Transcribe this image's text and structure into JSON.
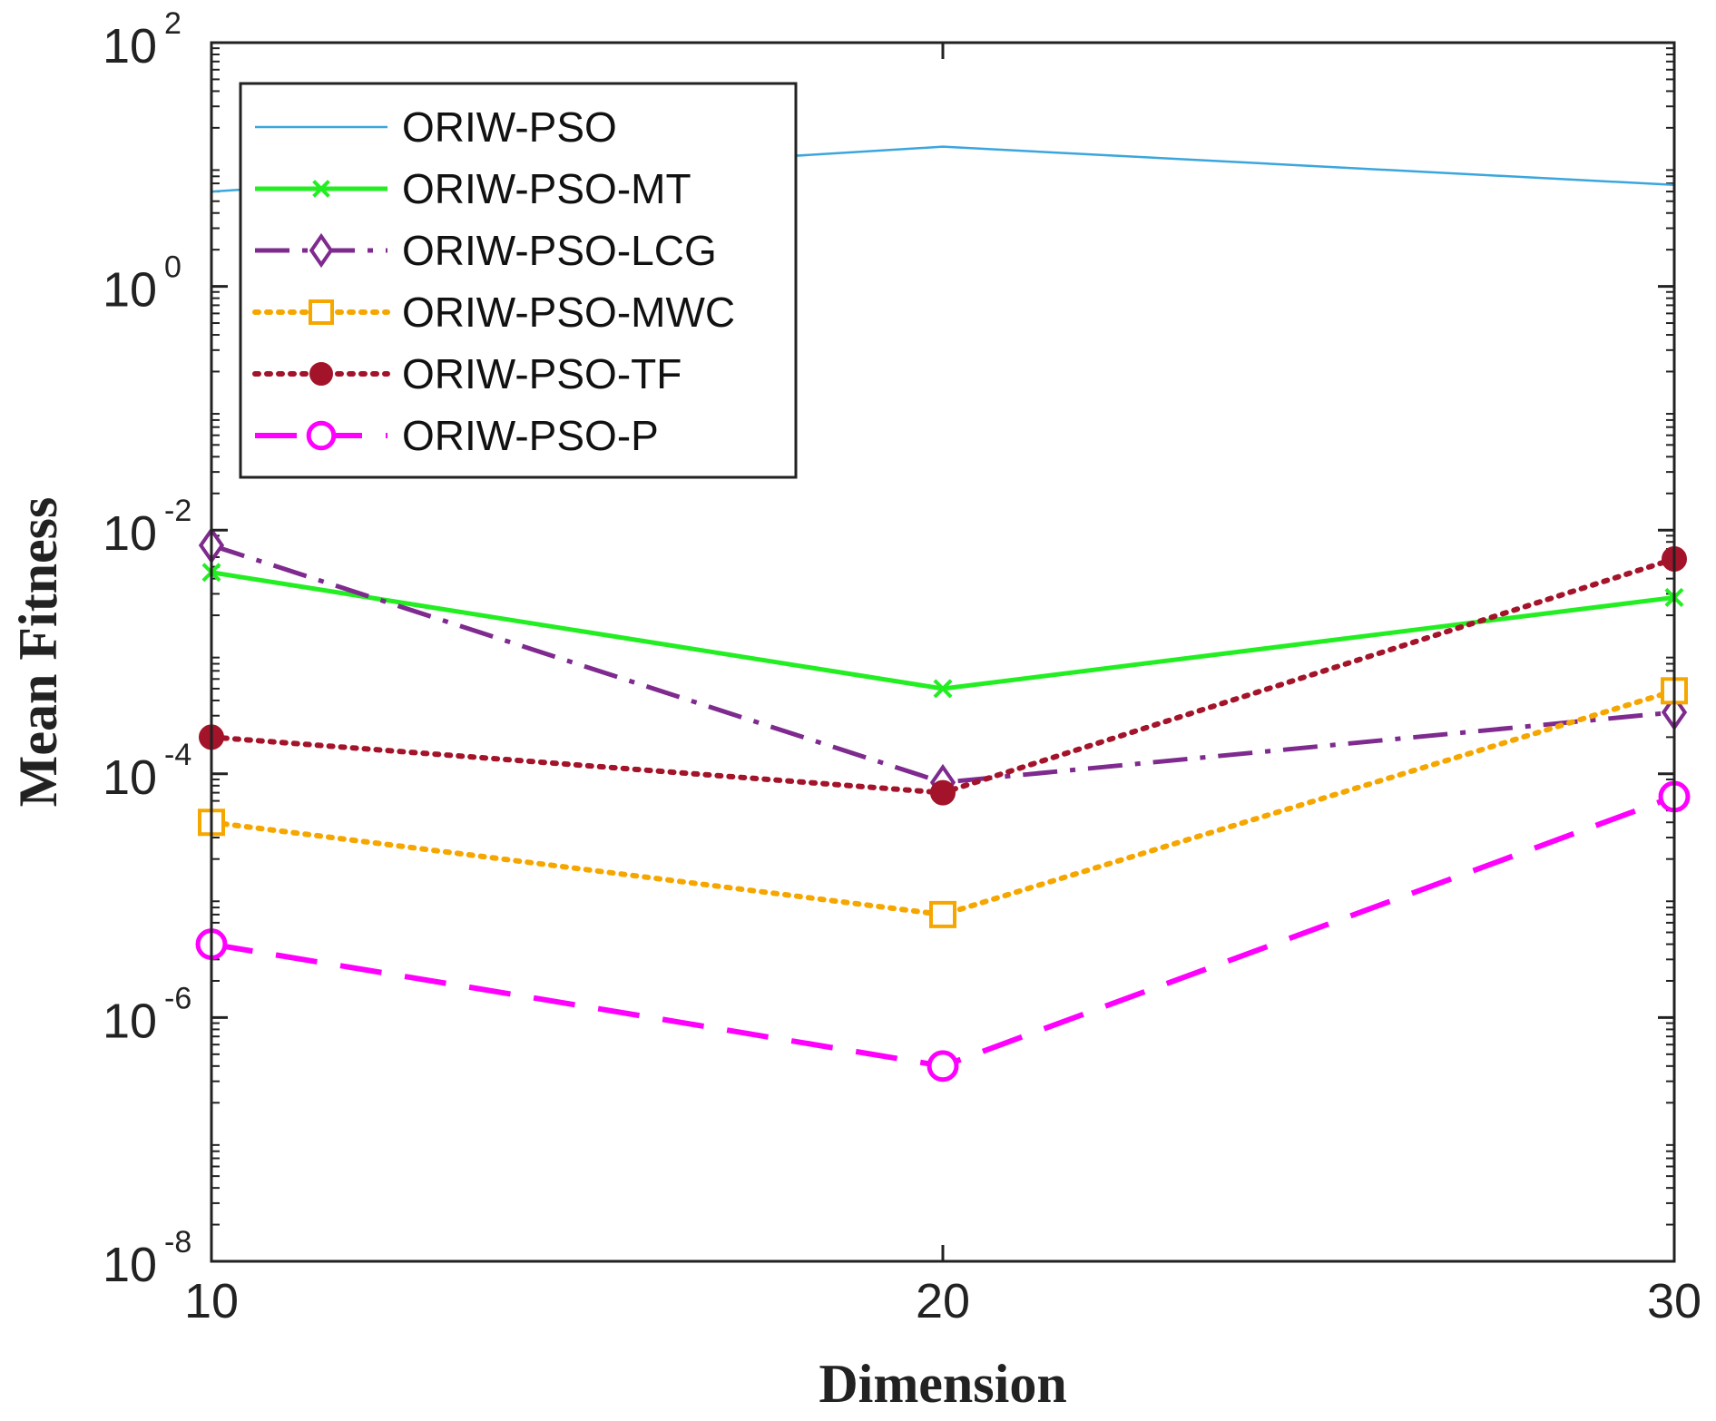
{
  "chart_data": {
    "type": "line",
    "title": "",
    "xlabel": "Dimension",
    "ylabel": "Mean Fitness",
    "yscale": "log",
    "x": [
      10,
      20,
      30
    ],
    "xlim": [
      10,
      30
    ],
    "ylim": [
      1e-08,
      100
    ],
    "xticks": [
      {
        "value": 10,
        "label": "10"
      },
      {
        "value": 20,
        "label": "20"
      },
      {
        "value": 30,
        "label": "30"
      }
    ],
    "yticks": [
      {
        "exp": -8,
        "base": "10",
        "sup": "-8"
      },
      {
        "exp": -6,
        "base": "10",
        "sup": "-6"
      },
      {
        "exp": -4,
        "base": "10",
        "sup": "-4"
      },
      {
        "exp": -2,
        "base": "10",
        "sup": "-2"
      },
      {
        "exp": 0,
        "base": "10",
        "sup": "0"
      },
      {
        "exp": 2,
        "base": "10",
        "sup": "2"
      }
    ],
    "legend_position": "top-left",
    "series": [
      {
        "name": "ORIW-PSO",
        "values": [
          6,
          14,
          6.8
        ],
        "color": "#3aa6dd",
        "dash": "solid",
        "marker": "none"
      },
      {
        "name": "ORIW-PSO-MT",
        "values": [
          0.0045,
          0.0005,
          0.0028
        ],
        "color": "#22ee22",
        "dash": "solid",
        "marker": "x"
      },
      {
        "name": "ORIW-PSO-LCG",
        "values": [
          0.0075,
          8.5e-05,
          0.00032
        ],
        "color": "#7e2a8e",
        "dash": "dashdot",
        "marker": "diamond"
      },
      {
        "name": "ORIW-PSO-MWC",
        "values": [
          4e-05,
          7e-06,
          0.00048
        ],
        "color": "#f5a700",
        "dash": "dotted",
        "marker": "square"
      },
      {
        "name": "ORIW-PSO-TF",
        "values": [
          0.0002,
          7e-05,
          0.0058
        ],
        "color": "#a3142a",
        "dash": "dotted",
        "marker": "dot"
      },
      {
        "name": "ORIW-PSO-P",
        "values": [
          4e-06,
          4e-07,
          6.5e-05
        ],
        "color": "#ff00ff",
        "dash": "dashed",
        "marker": "circle"
      }
    ]
  }
}
